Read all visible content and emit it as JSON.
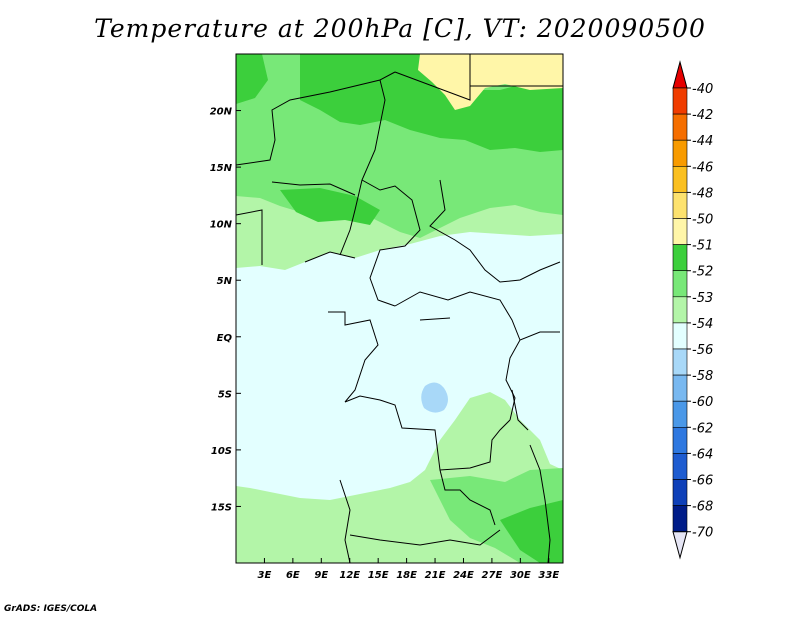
{
  "title": "Temperature at 200hPa [C], VT: 2020090500",
  "credit": "GrADS: IGES/COLA",
  "map": {
    "lon_range": [
      0,
      34.5
    ],
    "lat_range": [
      -20,
      25
    ],
    "x_ticks": [
      {
        "lon": 3,
        "label": "3E"
      },
      {
        "lon": 6,
        "label": "6E"
      },
      {
        "lon": 9,
        "label": "9E"
      },
      {
        "lon": 12,
        "label": "12E"
      },
      {
        "lon": 15,
        "label": "15E"
      },
      {
        "lon": 18,
        "label": "18E"
      },
      {
        "lon": 21,
        "label": "21E"
      },
      {
        "lon": 24,
        "label": "24E"
      },
      {
        "lon": 27,
        "label": "27E"
      },
      {
        "lon": 30,
        "label": "30E"
      },
      {
        "lon": 33,
        "label": "33E"
      }
    ],
    "y_ticks": [
      {
        "lat": 20,
        "label": "20N"
      },
      {
        "lat": 15,
        "label": "15N"
      },
      {
        "lat": 10,
        "label": "10N"
      },
      {
        "lat": 5,
        "label": "5N"
      },
      {
        "lat": 0,
        "label": "EQ"
      },
      {
        "lat": -5,
        "label": "5S"
      },
      {
        "lat": -10,
        "label": "10S"
      },
      {
        "lat": -15,
        "label": "15S"
      }
    ],
    "colors": {
      "c_50": "#fff6a8",
      "c_51": "#3ccf3c",
      "c_52": "#78e878",
      "c_53": "#b3f5a8",
      "c_54": "#e3ffff",
      "c_56": "#a8d8f8",
      "border": "#000000"
    }
  },
  "colorbar": {
    "labels": [
      "-40",
      "-42",
      "-44",
      "-46",
      "-48",
      "-50",
      "-51",
      "-52",
      "-53",
      "-54",
      "-56",
      "-58",
      "-60",
      "-62",
      "-64",
      "-66",
      "-68",
      "-70"
    ],
    "colors": [
      "#e60000",
      "#f03c00",
      "#f56e00",
      "#f89b00",
      "#fbc020",
      "#fde26e",
      "#fff6a8",
      "#3ccf3c",
      "#78e878",
      "#b3f5a8",
      "#e3ffff",
      "#a8d8f8",
      "#78b8f0",
      "#4a98e8",
      "#2e78e0",
      "#1e5cd0",
      "#0e40b8",
      "#001c88",
      "#e6e6f5"
    ]
  }
}
